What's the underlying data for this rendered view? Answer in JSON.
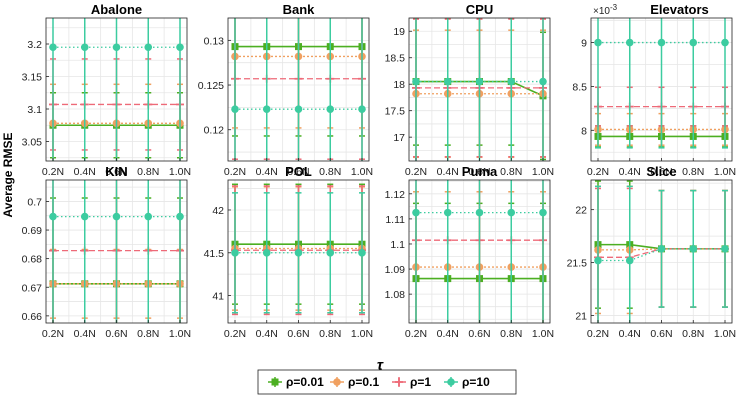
{
  "chart_data": {
    "type": "line",
    "ylabel": "Average RMSE",
    "xlabel": "τ",
    "categories": [
      "0.2N",
      "0.4N",
      "0.6N",
      "0.8N",
      "1.0N"
    ],
    "legend": {
      "placement": "bottom-center",
      "entries": [
        {
          "name": "ρ=0.01",
          "color": "#4caf22",
          "marker": "square"
        },
        {
          "name": "ρ=0.1",
          "color": "#f0a060",
          "marker": "circle"
        },
        {
          "name": "ρ=1",
          "color": "#ee6a78",
          "marker": "plus"
        },
        {
          "name": "ρ=10",
          "color": "#3ccca0",
          "marker": "circle"
        }
      ]
    },
    "panels": [
      {
        "title": "Abalone",
        "ylim": [
          3.02,
          3.24
        ],
        "yticks": [
          "3.05",
          "3.1",
          "3.15",
          "3.2"
        ],
        "ytick_values": [
          3.05,
          3.1,
          3.15,
          3.2
        ],
        "series": [
          [
            3.075,
            3.075,
            3.075,
            3.075,
            3.075
          ],
          [
            3.078,
            3.078,
            3.078,
            3.078,
            3.078
          ],
          [
            3.107,
            3.107,
            3.107,
            3.107,
            3.107
          ],
          [
            3.195,
            3.195,
            3.195,
            3.195,
            3.195
          ]
        ],
        "errors": [
          [
            0.05,
            0.05,
            0.05,
            0.05,
            0.05
          ],
          [
            0.06,
            0.06,
            0.06,
            0.06,
            0.06
          ],
          [
            0.07,
            0.07,
            0.07,
            0.07,
            0.07
          ],
          [
            0.3,
            0.3,
            0.3,
            0.3,
            0.3
          ]
        ]
      },
      {
        "title": "Bank",
        "ylim": [
          0.1165,
          0.1325
        ],
        "yticks": [
          "0.12",
          "0.125",
          "0.13"
        ],
        "ytick_values": [
          0.12,
          0.125,
          0.13
        ],
        "series": [
          [
            0.1293,
            0.1293,
            0.1293,
            0.1293,
            0.1293
          ],
          [
            0.1282,
            0.1282,
            0.1282,
            0.1282,
            0.1282
          ],
          [
            0.1257,
            0.1257,
            0.1257,
            0.1257,
            0.1257
          ],
          [
            0.1223,
            0.1223,
            0.1223,
            0.1223,
            0.1223
          ]
        ],
        "errors": [
          [
            0.01,
            0.01,
            0.01,
            0.01,
            0.01
          ],
          [
            0.008,
            0.008,
            0.008,
            0.008,
            0.008
          ],
          [
            0.009,
            0.009,
            0.009,
            0.009,
            0.009
          ],
          [
            0.02,
            0.02,
            0.02,
            0.02,
            0.02
          ]
        ]
      },
      {
        "title": "CPU",
        "ylim": [
          16.55,
          19.25
        ],
        "yticks": [
          "17",
          "17.5",
          "18",
          "18.5",
          "19"
        ],
        "ytick_values": [
          17,
          17.5,
          18,
          18.5,
          19
        ],
        "series": [
          [
            18.05,
            18.05,
            18.05,
            18.05,
            17.78
          ],
          [
            17.82,
            17.82,
            17.82,
            17.82,
            17.82
          ],
          [
            17.93,
            17.93,
            17.93,
            17.93,
            17.93
          ],
          [
            18.05,
            18.05,
            18.05,
            18.05,
            18.05
          ]
        ],
        "errors": [
          [
            1.2,
            1.2,
            1.2,
            1.2,
            1.2
          ],
          [
            1.2,
            1.2,
            1.2,
            1.2,
            1.2
          ],
          [
            1.3,
            1.3,
            1.3,
            1.3,
            1.3
          ],
          [
            2.5,
            2.5,
            2.5,
            2.5,
            2.5
          ]
        ]
      },
      {
        "title": "Elevators",
        "exponent": "×10",
        "exponent_power": "-3",
        "ylim": [
          7.65,
          9.28
        ],
        "yticks": [
          "8",
          "8.5",
          "9"
        ],
        "ytick_values": [
          8,
          8.5,
          9
        ],
        "series": [
          [
            7.93,
            7.93,
            7.93,
            7.93,
            7.93
          ],
          [
            8.01,
            8.01,
            8.01,
            8.01,
            8.01
          ],
          [
            8.27,
            8.27,
            8.27,
            8.27,
            8.27
          ],
          [
            9.0,
            9.0,
            9.0,
            9.0,
            9.0
          ]
        ],
        "errors": [
          [
            0.12,
            0.12,
            0.12,
            0.12,
            0.12
          ],
          [
            0.18,
            0.18,
            0.18,
            0.18,
            0.18
          ],
          [
            0.22,
            0.22,
            0.22,
            0.22,
            0.22
          ],
          [
            1.2,
            1.2,
            1.2,
            1.2,
            1.2
          ]
        ]
      },
      {
        "title": "KIN",
        "ylim": [
          0.6575,
          0.7075
        ],
        "yticks": [
          "0.66",
          "0.67",
          "0.68",
          "0.69",
          "0.7"
        ],
        "ytick_values": [
          0.66,
          0.67,
          0.68,
          0.69,
          0.7
        ],
        "series": [
          [
            0.6712,
            0.6712,
            0.6712,
            0.6712,
            0.6712
          ],
          [
            0.6712,
            0.6712,
            0.6712,
            0.6712,
            0.6712
          ],
          [
            0.6828,
            0.6828,
            0.6828,
            0.6828,
            0.6828
          ],
          [
            0.6947,
            0.6947,
            0.6947,
            0.6947,
            0.6947
          ]
        ],
        "errors": [
          [
            0.03,
            0.03,
            0.03,
            0.03,
            0.03
          ],
          [
            0.012,
            0.012,
            0.012,
            0.012,
            0.012
          ],
          [
            0.03,
            0.03,
            0.03,
            0.03,
            0.03
          ],
          [
            0.05,
            0.05,
            0.05,
            0.05,
            0.05
          ]
        ]
      },
      {
        "title": "POL",
        "ylim": [
          40.68,
          42.35
        ],
        "yticks": [
          "41",
          "41.5",
          "42"
        ],
        "ytick_values": [
          41,
          41.5,
          42
        ],
        "series": [
          [
            41.6,
            41.6,
            41.6,
            41.6,
            41.6
          ],
          [
            41.55,
            41.55,
            41.55,
            41.55,
            41.55
          ],
          [
            41.53,
            41.53,
            41.53,
            41.53,
            41.53
          ],
          [
            41.5,
            41.5,
            41.5,
            41.5,
            41.5
          ]
        ],
        "errors": [
          [
            0.7,
            0.7,
            0.7,
            0.7,
            0.7
          ],
          [
            0.72,
            0.72,
            0.72,
            0.72,
            0.72
          ],
          [
            0.75,
            0.75,
            0.75,
            0.75,
            0.75
          ],
          [
            0.7,
            0.7,
            0.7,
            0.7,
            0.7
          ]
        ]
      },
      {
        "title": "Puma",
        "ylim": [
          1.0685,
          1.1255
        ],
        "yticks": [
          "1.08",
          "1.09",
          "1.1",
          "1.11",
          "1.12"
        ],
        "ytick_values": [
          1.08,
          1.09,
          1.1,
          1.11,
          1.12
        ],
        "series": [
          [
            1.0862,
            1.0862,
            1.0862,
            1.0862,
            1.0862
          ],
          [
            1.0908,
            1.0908,
            1.0908,
            1.0908,
            1.0908
          ],
          [
            1.1015,
            1.1015,
            1.1015,
            1.1015,
            1.1015
          ],
          [
            1.1125,
            1.1125,
            1.1125,
            1.1125,
            1.1125
          ]
        ],
        "errors": [
          [
            0.03,
            0.03,
            0.03,
            0.03,
            0.03
          ],
          [
            0.03,
            0.03,
            0.03,
            0.03,
            0.03
          ],
          [
            0.04,
            0.04,
            0.04,
            0.04,
            0.04
          ],
          [
            0.06,
            0.06,
            0.06,
            0.06,
            0.06
          ]
        ]
      },
      {
        "title": "Slice",
        "ylim": [
          20.93,
          22.28
        ],
        "yticks": [
          "21",
          "21.5",
          "22"
        ],
        "ytick_values": [
          21,
          21.5,
          22
        ],
        "series": [
          [
            21.67,
            21.67,
            21.63,
            21.63,
            21.63
          ],
          [
            21.62,
            21.62,
            21.63,
            21.63,
            21.63
          ],
          [
            21.55,
            21.55,
            21.63,
            21.63,
            21.63
          ],
          [
            21.52,
            21.52,
            21.63,
            21.63,
            21.63
          ]
        ],
        "errors": [
          [
            0.6,
            0.6,
            0.55,
            0.55,
            0.55
          ],
          [
            0.6,
            0.6,
            0.55,
            0.55,
            0.55
          ],
          [
            0.65,
            0.65,
            0.55,
            0.55,
            0.55
          ],
          [
            0.7,
            0.7,
            0.55,
            0.55,
            0.55
          ]
        ]
      }
    ]
  }
}
